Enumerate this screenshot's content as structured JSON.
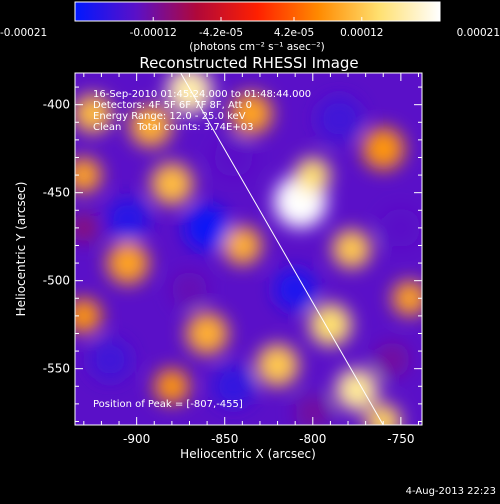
{
  "colorbar": {
    "tick_labels": [
      "-0.00021",
      "-0.00012",
      "-4.2e-05",
      "4.2e-05",
      "0.00012",
      "0.00021"
    ],
    "tick_values": [
      -0.00021,
      -0.00012,
      -4.2e-05,
      4.2e-05,
      0.00012,
      0.00021
    ],
    "range": [
      -0.00021,
      0.00021
    ],
    "unit_label": "(photons cm⁻² s⁻¹ asec⁻²)",
    "colors": [
      "#0018ff",
      "#5a10c8",
      "#b0083a",
      "#ff2000",
      "#ff8a00",
      "#ffe070",
      "#ffffff"
    ]
  },
  "chart_data": {
    "type": "heatmap",
    "title": "Reconstructed RHESSI Image",
    "xlabel": "Heliocentric X (arcsec)",
    "ylabel": "Heliocentric Y (arcsec)",
    "xlim": [
      -935,
      -738
    ],
    "ylim": [
      -582,
      -382
    ],
    "x_ticks": [
      -900,
      -850,
      -800,
      -750
    ],
    "x_tick_labels": [
      "-900",
      "-850",
      "-800",
      "-750"
    ],
    "y_ticks": [
      -550,
      -500,
      -450,
      -400
    ],
    "y_tick_labels": [
      "-550",
      "-500",
      "-450",
      "-400"
    ],
    "annotations": [
      "16-Sep-2010 01:45:24.000 to 01:48:44.000",
      "Detectors: 4F 5F 6F 7F 8F, Att 0",
      "Energy Range: 12.0 - 25.0 keV",
      "Clean     Total counts: 3.74E+03"
    ],
    "peak_label": "Position of Peak = [-807,-455]",
    "peak": [
      -807,
      -455
    ],
    "limb_line": [
      [
        -875,
        -382
      ],
      [
        -760,
        -582
      ]
    ],
    "blobs": [
      {
        "x": -807,
        "y": -455,
        "r": 15,
        "v": 0.00021
      },
      {
        "x": -800,
        "y": -440,
        "r": 10,
        "v": 0.00014
      },
      {
        "x": -870,
        "y": -392,
        "r": 13,
        "v": 0.00017
      },
      {
        "x": -892,
        "y": -412,
        "r": 12,
        "v": 0.0001
      },
      {
        "x": -925,
        "y": -405,
        "r": 11,
        "v": 0.00011
      },
      {
        "x": -930,
        "y": -440,
        "r": 10,
        "v": 9e-05
      },
      {
        "x": -880,
        "y": -445,
        "r": 12,
        "v": 0.00011
      },
      {
        "x": -840,
        "y": -480,
        "r": 11,
        "v": 0.0001
      },
      {
        "x": -905,
        "y": -490,
        "r": 12,
        "v": 9e-05
      },
      {
        "x": -930,
        "y": -520,
        "r": 10,
        "v": 8e-05
      },
      {
        "x": -778,
        "y": -482,
        "r": 11,
        "v": 0.00012
      },
      {
        "x": -790,
        "y": -525,
        "r": 12,
        "v": 0.00014
      },
      {
        "x": -820,
        "y": -548,
        "r": 12,
        "v": 0.00012
      },
      {
        "x": -775,
        "y": -562,
        "r": 12,
        "v": 0.00016
      },
      {
        "x": -760,
        "y": -580,
        "r": 10,
        "v": 0.00013
      },
      {
        "x": -860,
        "y": -530,
        "r": 12,
        "v": 0.0001
      },
      {
        "x": -880,
        "y": -560,
        "r": 10,
        "v": 8e-05
      },
      {
        "x": -835,
        "y": -405,
        "r": 12,
        "v": 9e-05
      },
      {
        "x": -760,
        "y": -425,
        "r": 12,
        "v": 8e-05
      },
      {
        "x": -745,
        "y": -510,
        "r": 10,
        "v": 9e-05
      },
      {
        "x": -905,
        "y": -465,
        "r": 12,
        "v": -0.00018
      },
      {
        "x": -860,
        "y": -470,
        "r": 13,
        "v": -0.0002
      },
      {
        "x": -845,
        "y": -430,
        "r": 11,
        "v": -0.00014
      },
      {
        "x": -810,
        "y": -505,
        "r": 12,
        "v": -0.00019
      },
      {
        "x": -785,
        "y": -408,
        "r": 13,
        "v": -0.00016
      },
      {
        "x": -750,
        "y": -470,
        "r": 11,
        "v": -0.00014
      },
      {
        "x": -915,
        "y": -545,
        "r": 12,
        "v": -0.00016
      },
      {
        "x": -845,
        "y": -560,
        "r": 12,
        "v": -0.00017
      },
      {
        "x": -800,
        "y": -575,
        "r": 10,
        "v": -0.00012
      },
      {
        "x": -870,
        "y": -505,
        "r": 10,
        "v": -0.00013
      },
      {
        "x": -930,
        "y": -470,
        "r": 8,
        "v": -0.0001
      },
      {
        "x": -755,
        "y": -545,
        "r": 10,
        "v": -0.00012
      }
    ]
  },
  "footer": {
    "date": "4-Aug-2013 22:23"
  }
}
